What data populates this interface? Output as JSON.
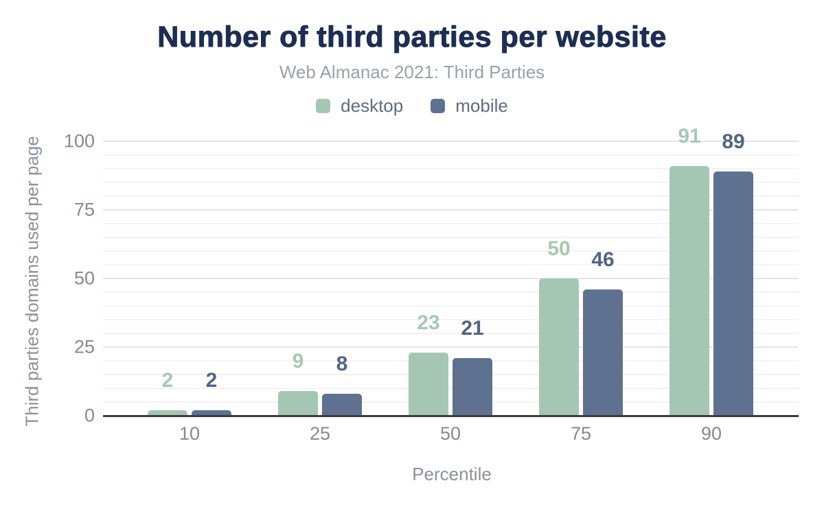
{
  "header": {
    "title": "Number of third parties per website",
    "subtitle": "Web Almanac 2021: Third Parties"
  },
  "chart_data": {
    "type": "bar",
    "categories": [
      "10",
      "25",
      "50",
      "75",
      "90"
    ],
    "series": [
      {
        "name": "desktop",
        "values": [
          2,
          9,
          23,
          50,
          91
        ],
        "color": "#a5c6b3",
        "label_color": "#a7c8b5"
      },
      {
        "name": "mobile",
        "values": [
          2,
          8,
          21,
          46,
          89
        ],
        "color": "#5f7190",
        "label_color": "#516485"
      }
    ],
    "title": "Number of third parties per website",
    "subtitle": "Web Almanac 2021: Third Parties",
    "xlabel": "Percentile",
    "ylabel": "Third parties domains used per page",
    "ylim": [
      0,
      100
    ],
    "yticks": [
      0,
      25,
      50,
      75,
      100
    ],
    "minor_grid_step": 5,
    "grid": "on",
    "legend_position": "top",
    "data_labels": "above-bars"
  },
  "colors": {
    "background": "#ffffff",
    "title": "#1d2e52",
    "subtitle": "#9aa1a9",
    "legend_text": "#626c79",
    "tick_label": "#85898f",
    "axis_title": "#8b919b",
    "axis_line": "#3a3b3d",
    "grid_major": "#e4e4e4",
    "grid_minor": "#f3f3f3"
  }
}
